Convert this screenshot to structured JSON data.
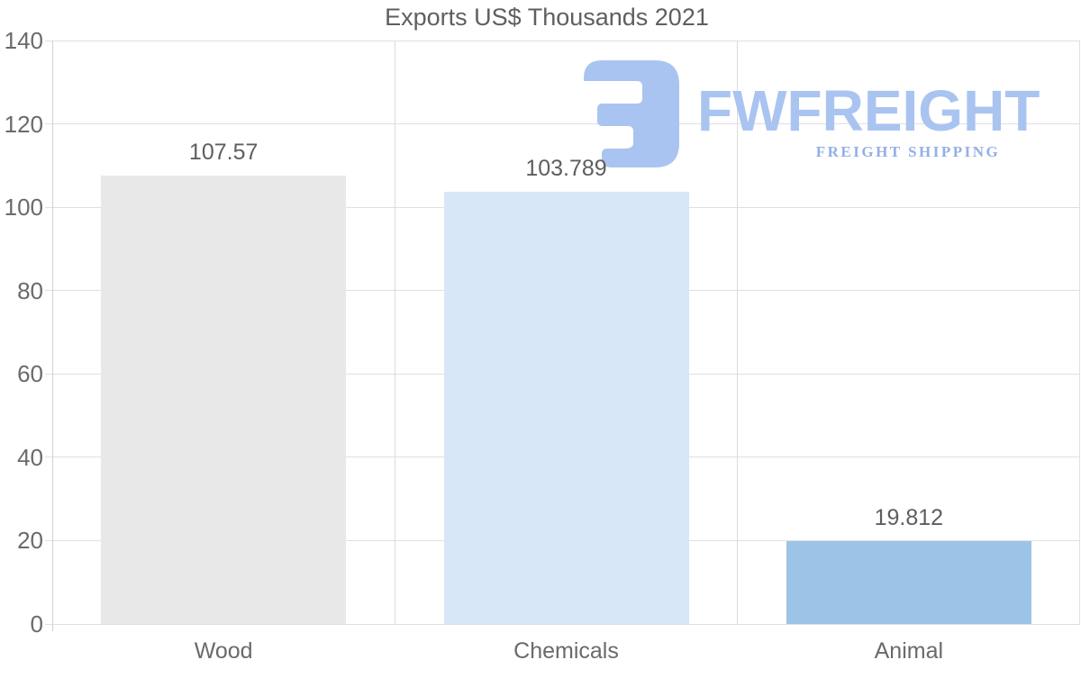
{
  "title": "Exports US$ Thousands 2021",
  "logo": {
    "brand": "FWFREIGHT",
    "tagline": "FREIGHT SHIPPING",
    "brand_color": "#a9c4f0",
    "tagline_color": "#92b0e6",
    "mark_color": "#a9c4f0"
  },
  "colors": {
    "background": "#ffffff",
    "text": "#5f5f5f",
    "tick_text": "#6a6a6a",
    "hgrid": "#e0e0e0",
    "vgrid": "#dcdcdc",
    "axis": "#cfcfcf"
  },
  "chart_data": {
    "type": "bar",
    "title": "Exports US$ Thousands 2021",
    "categories": [
      "Wood",
      "Chemicals",
      "Animal"
    ],
    "values": [
      107.57,
      103.789,
      19.812
    ],
    "value_labels": [
      "107.57",
      "103.789",
      "19.812"
    ],
    "bar_colors": [
      "#e8e8e8",
      "#d7e7f8",
      "#9cc4e7"
    ],
    "xlabel": "",
    "ylabel": "",
    "ylim": [
      0,
      140
    ],
    "yticks": [
      0,
      20,
      40,
      60,
      80,
      100,
      120,
      140
    ],
    "grid": true,
    "legend": false
  }
}
